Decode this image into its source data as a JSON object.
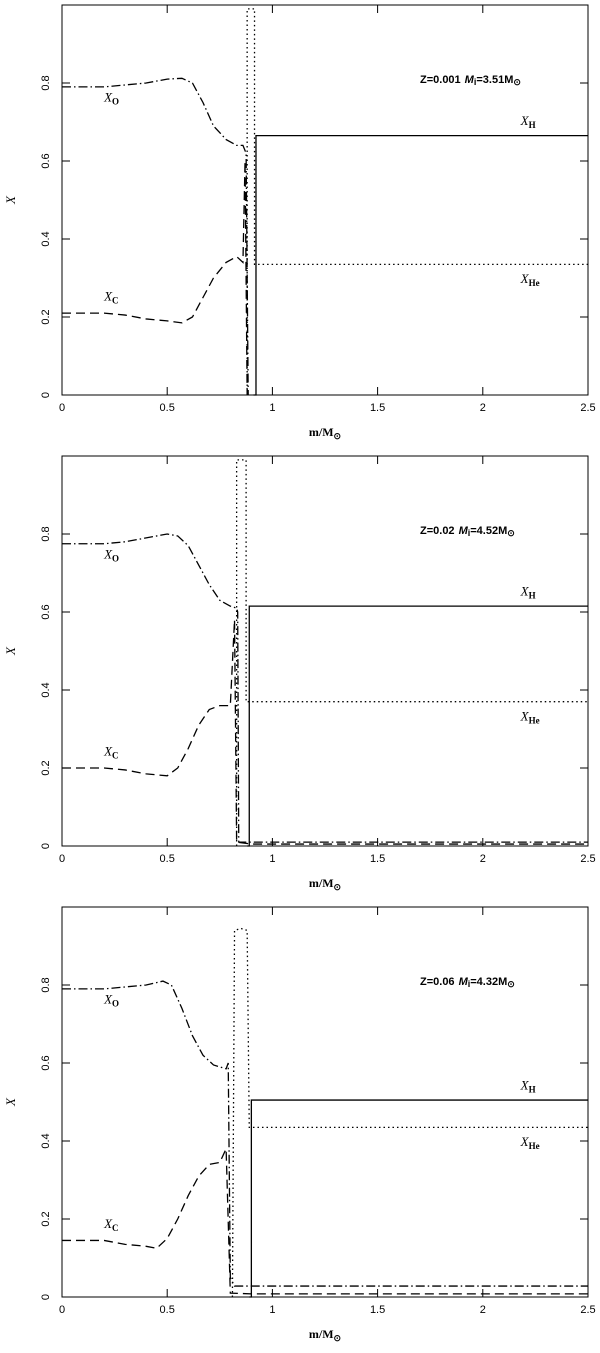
{
  "chart_data": [
    {
      "type": "line",
      "annotation": [
        "Z=0.001",
        "M",
        "i",
        "=3.51M",
        "⊙"
      ],
      "x_label": [
        "m/M",
        "⊙"
      ],
      "y_label": "X",
      "xlim": [
        0,
        2.5
      ],
      "ylim": [
        0,
        1
      ],
      "xticks": [
        0,
        0.5,
        1,
        1.5,
        2,
        2.5
      ],
      "yticks": [
        0,
        0.2,
        0.4,
        0.6,
        0.8
      ],
      "series": [
        {
          "name": "X",
          "subscript": "H",
          "color": "#000000",
          "style": "solid",
          "x": [
            0.91,
            0.922,
            0.922,
            2.5
          ],
          "values": [
            0,
            0,
            0.665,
            0.665
          ]
        },
        {
          "name": "X",
          "subscript": "He",
          "color": "#000000",
          "style": "dotted",
          "x": [
            0.88,
            0.88,
            0.915,
            0.915,
            2.5
          ],
          "values": [
            0,
            0.99,
            0.99,
            0.335,
            0.335
          ]
        },
        {
          "name": "X",
          "subscript": "C",
          "color": "#000000",
          "style": "dashed",
          "x": [
            0,
            0.2,
            0.3,
            0.4,
            0.5,
            0.57,
            0.62,
            0.67,
            0.72,
            0.78,
            0.83,
            0.86,
            0.87,
            0.88
          ],
          "values": [
            0.21,
            0.21,
            0.205,
            0.195,
            0.19,
            0.185,
            0.2,
            0.25,
            0.3,
            0.34,
            0.355,
            0.34,
            0.6,
            0
          ]
        },
        {
          "name": "X",
          "subscript": "O",
          "color": "#000000",
          "style": "dashdot",
          "x": [
            0,
            0.1,
            0.2,
            0.3,
            0.4,
            0.5,
            0.57,
            0.62,
            0.67,
            0.72,
            0.78,
            0.83,
            0.86,
            0.875,
            0.885
          ],
          "values": [
            0.79,
            0.79,
            0.79,
            0.795,
            0.8,
            0.81,
            0.812,
            0.8,
            0.75,
            0.69,
            0.655,
            0.64,
            0.64,
            0.62,
            0
          ]
        }
      ]
    },
    {
      "type": "line",
      "annotation": [
        "Z=0.02",
        "M",
        "i",
        "=4.52M",
        "⊙"
      ],
      "x_label": [
        "m/M",
        "⊙"
      ],
      "y_label": "X",
      "xlim": [
        0,
        2.5
      ],
      "ylim": [
        0,
        1
      ],
      "xticks": [
        0,
        0.5,
        1,
        1.5,
        2,
        2.5
      ],
      "yticks": [
        0,
        0.2,
        0.4,
        0.6,
        0.8
      ],
      "series": [
        {
          "name": "X",
          "subscript": "H",
          "color": "#000000",
          "style": "solid",
          "x": [
            0.88,
            0.89,
            0.89,
            2.5
          ],
          "values": [
            0,
            0,
            0.615,
            0.615
          ]
        },
        {
          "name": "X",
          "subscript": "He",
          "color": "#000000",
          "style": "dotted",
          "x": [
            0.83,
            0.83,
            0.875,
            0.875,
            2.5
          ],
          "values": [
            0,
            0.99,
            0.99,
            0.37,
            0.37
          ]
        },
        {
          "name": "X",
          "subscript": "C",
          "color": "#000000",
          "style": "dashed",
          "x": [
            0,
            0.2,
            0.3,
            0.4,
            0.5,
            0.55,
            0.6,
            0.65,
            0.7,
            0.75,
            0.8,
            0.82,
            0.83,
            0.9,
            2.5
          ],
          "values": [
            0.2,
            0.2,
            0.195,
            0.185,
            0.18,
            0.2,
            0.25,
            0.31,
            0.35,
            0.36,
            0.36,
            0.58,
            0.01,
            0.005,
            0.005
          ]
        },
        {
          "name": "X",
          "subscript": "O",
          "color": "#000000",
          "style": "dashdot",
          "x": [
            0,
            0.2,
            0.3,
            0.4,
            0.5,
            0.55,
            0.6,
            0.65,
            0.7,
            0.75,
            0.8,
            0.83,
            0.835,
            0.84,
            0.9,
            2.5
          ],
          "values": [
            0.775,
            0.775,
            0.78,
            0.79,
            0.8,
            0.795,
            0.77,
            0.72,
            0.67,
            0.63,
            0.615,
            0.61,
            0.6,
            0.01,
            0.01,
            0.01
          ]
        }
      ]
    },
    {
      "type": "line",
      "annotation": [
        "Z=0.06",
        "M",
        "i",
        "=4.32M",
        "⊙"
      ],
      "x_label": [
        "m/M",
        "⊙"
      ],
      "y_label": "X",
      "xlim": [
        0,
        2.5
      ],
      "ylim": [
        0,
        1
      ],
      "xticks": [
        0,
        0.5,
        1,
        1.5,
        2,
        2.5
      ],
      "yticks": [
        0,
        0.2,
        0.4,
        0.6,
        0.8
      ],
      "series": [
        {
          "name": "X",
          "subscript": "H",
          "color": "#000000",
          "style": "solid",
          "x": [
            0.89,
            0.9,
            0.9,
            2.5
          ],
          "values": [
            0,
            0,
            0.505,
            0.505
          ]
        },
        {
          "name": "X",
          "subscript": "He",
          "color": "#000000",
          "style": "dotted",
          "x": [
            0.81,
            0.82,
            0.85,
            0.88,
            0.89,
            2.5
          ],
          "values": [
            0,
            0.94,
            0.945,
            0.94,
            0.435,
            0.435
          ]
        },
        {
          "name": "X",
          "subscript": "C",
          "color": "#000000",
          "style": "dashed",
          "x": [
            0,
            0.2,
            0.3,
            0.4,
            0.45,
            0.5,
            0.55,
            0.6,
            0.65,
            0.7,
            0.75,
            0.78,
            0.8,
            0.9,
            2.5
          ],
          "values": [
            0.145,
            0.145,
            0.135,
            0.13,
            0.125,
            0.15,
            0.2,
            0.26,
            0.31,
            0.34,
            0.345,
            0.38,
            0.01,
            0.008,
            0.008
          ]
        },
        {
          "name": "X",
          "subscript": "O",
          "color": "#000000",
          "style": "dashdot",
          "x": [
            0,
            0.2,
            0.3,
            0.4,
            0.48,
            0.52,
            0.57,
            0.62,
            0.67,
            0.72,
            0.78,
            0.79,
            0.8,
            0.82,
            0.9,
            2.5
          ],
          "values": [
            0.79,
            0.79,
            0.795,
            0.8,
            0.81,
            0.8,
            0.74,
            0.67,
            0.62,
            0.595,
            0.585,
            0.6,
            0.05,
            0.028,
            0.028,
            0.028
          ]
        }
      ]
    }
  ]
}
